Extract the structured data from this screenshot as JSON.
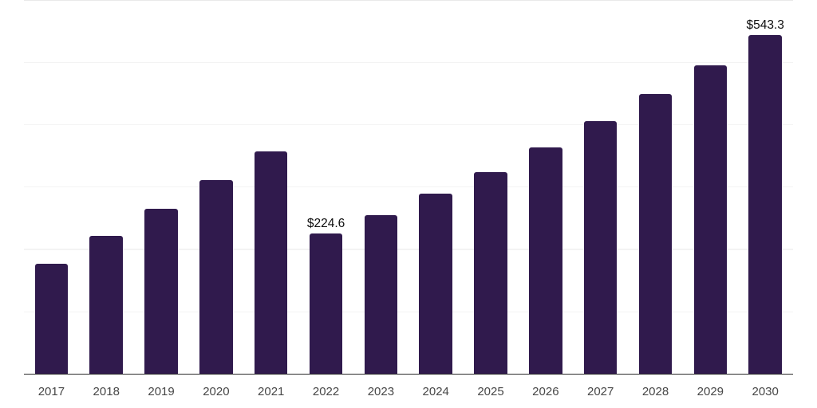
{
  "chart_data": {
    "type": "bar",
    "title": "",
    "categories": [
      "2017",
      "2018",
      "2019",
      "2020",
      "2021",
      "2022",
      "2023",
      "2024",
      "2025",
      "2026",
      "2027",
      "2028",
      "2029",
      "2030"
    ],
    "values": [
      176.5,
      221.3,
      264.4,
      310.4,
      356.8,
      224.6,
      254.6,
      288.7,
      323.9,
      363.2,
      404.9,
      448.7,
      495.6,
      543.3
    ],
    "bar_labels": [
      "",
      "",
      "",
      "",
      "",
      "$224.6",
      "",
      "",
      "",
      "",
      "",
      "",
      "",
      "$543.3"
    ],
    "xlabel": "",
    "ylabel": "",
    "ylim": [
      0,
      600
    ],
    "y_gridline_step": 100,
    "y_tick_labels_visible": false,
    "legend": "none",
    "grid": "horizontal",
    "colors": {
      "bar": "#301a4d",
      "data_label": "#0e0e0e",
      "tick_label": "#474747",
      "axis_line": "#2b2b2b",
      "gridline": "#f3f3f3",
      "top_gridline": "#e9e9e9",
      "background": "#ffffff"
    }
  }
}
